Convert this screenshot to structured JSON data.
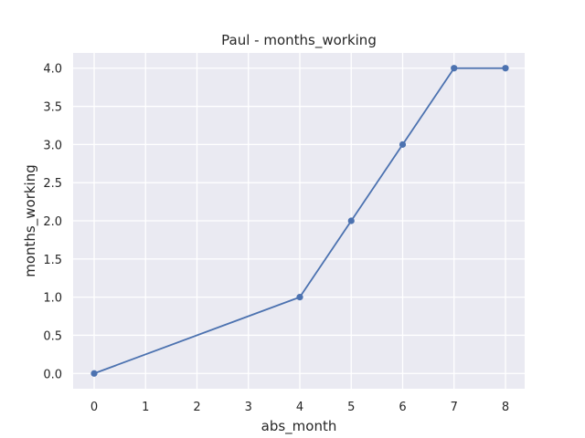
{
  "chart_data": {
    "type": "line",
    "title": "Paul - months_working",
    "xlabel": "abs_month",
    "ylabel": "months_working",
    "x_tick_labels": [
      "0",
      "1",
      "2",
      "3",
      "4",
      "5",
      "6",
      "7",
      "8"
    ],
    "y_ticks": [
      0.0,
      0.5,
      1.0,
      1.5,
      2.0,
      2.5,
      3.0,
      3.5,
      4.0
    ],
    "y_tick_labels": [
      "0.0",
      "0.5",
      "1.0",
      "1.5",
      "2.0",
      "2.5",
      "3.0",
      "3.5",
      "4.0"
    ],
    "ylim": [
      -0.2,
      4.2
    ],
    "grid": true,
    "series": [
      {
        "x": [
          0,
          4,
          5,
          6,
          7,
          8
        ],
        "values": [
          0,
          1,
          2,
          3,
          4,
          4
        ],
        "color": "#4c72b0"
      }
    ],
    "colors": {
      "background": "#eaeaf2",
      "grid": "#ffffff",
      "line": "#4c72b0"
    }
  }
}
